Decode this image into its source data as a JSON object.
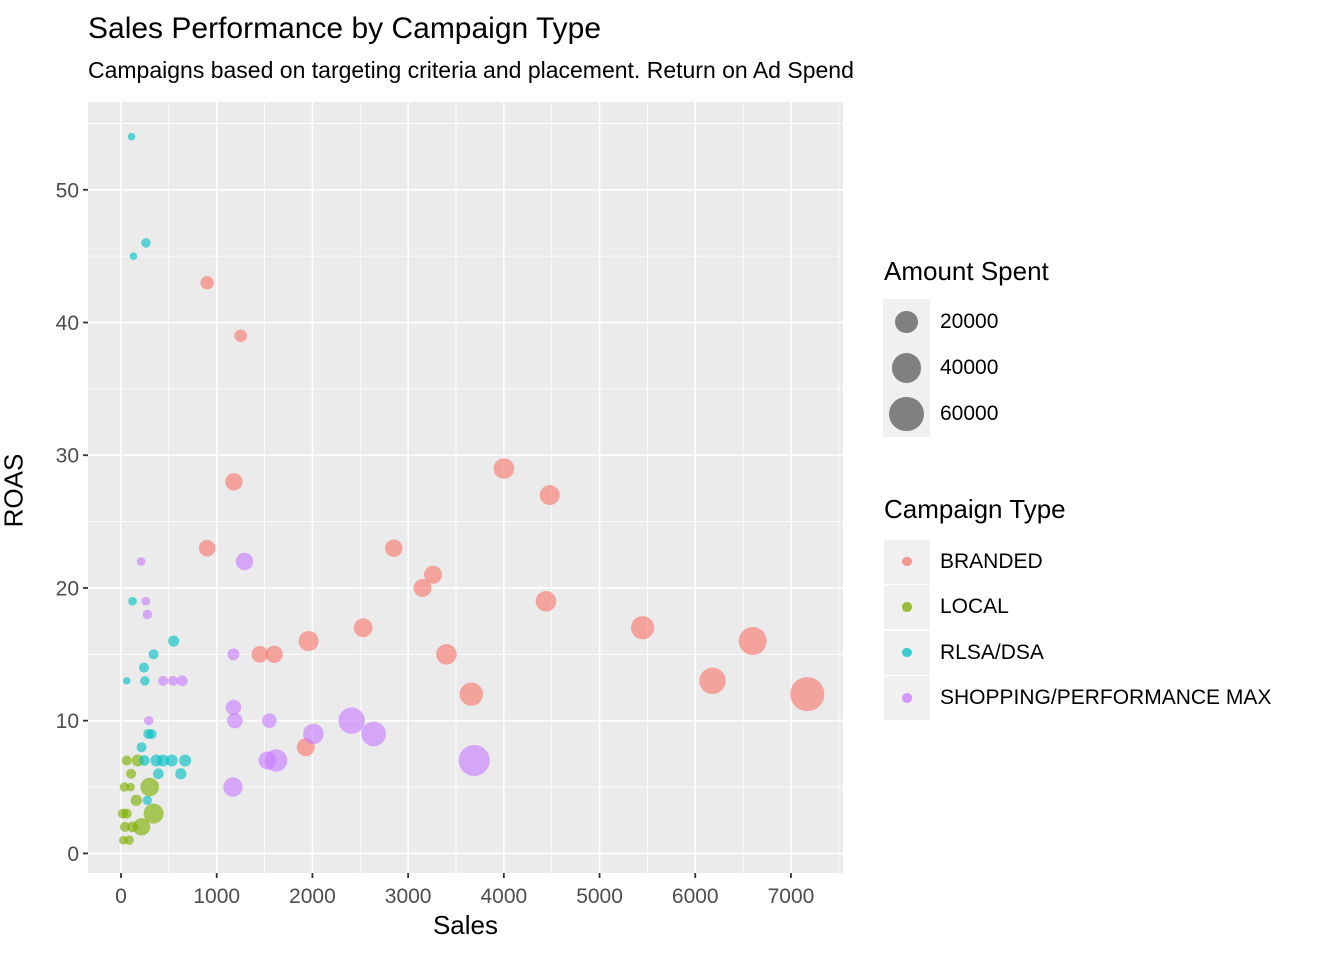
{
  "figure": {
    "title": "Sales Performance by Campaign Type",
    "subtitle": "Campaigns based on targeting criteria and placement. Return on Ad Spend",
    "x_axis_title": "Sales",
    "y_axis_title": "ROAS"
  },
  "legend": {
    "size_legend": {
      "title": "Amount Spent",
      "entries": [
        20000,
        40000,
        60000
      ],
      "circle_color": "#808080",
      "key_bg": "#F0F0F0"
    },
    "color_legend": {
      "title": "Campaign Type",
      "entries": [
        {
          "label": "BRANDED",
          "color": "#F8766D"
        },
        {
          "label": "LOCAL",
          "color": "#7CAE00"
        },
        {
          "label": "RLSA/DSA",
          "color": "#00BFC4"
        },
        {
          "label": "SHOPPING/PERFORMANCE MAX",
          "color": "#C77CFF"
        }
      ]
    }
  },
  "style": {
    "panel_bg": "#EBEBEB",
    "grid_color": "#FFFFFF",
    "tick_color": "#333333",
    "tick_label_color": "#4D4D4D",
    "point_opacity": 0.63
  },
  "chart_data": {
    "type": "scatter",
    "title": "Sales Performance by Campaign Type",
    "subtitle": "Campaigns based on targeting criteria and placement. Return on Ad Spend",
    "xlabel": "Sales",
    "ylabel": "ROAS",
    "xlim": [
      0,
      7500
    ],
    "ylim": [
      0,
      55
    ],
    "x_ticks": [
      0,
      1000,
      2000,
      3000,
      4000,
      5000,
      6000,
      7000
    ],
    "y_ticks": [
      0,
      10,
      20,
      30,
      40,
      50
    ],
    "size_variable": "amount_spent",
    "size_legend_values": [
      20000,
      40000,
      60000
    ],
    "legend_position": "right",
    "grid": true,
    "series": [
      {
        "name": "BRANDED",
        "color": "#F8766D",
        "points": [
          {
            "sales": 900,
            "roas": 43,
            "spent": 4300
          },
          {
            "sales": 1250,
            "roas": 39,
            "spent": 3600
          },
          {
            "sales": 1180,
            "roas": 28,
            "spent": 9500
          },
          {
            "sales": 900,
            "roas": 23,
            "spent": 8300
          },
          {
            "sales": 2850,
            "roas": 23,
            "spent": 9500
          },
          {
            "sales": 4000,
            "roas": 29,
            "spent": 15500
          },
          {
            "sales": 4480,
            "roas": 27,
            "spent": 14300
          },
          {
            "sales": 3260,
            "roas": 21,
            "spent": 10500
          },
          {
            "sales": 3150,
            "roas": 20,
            "spent": 10500
          },
          {
            "sales": 4440,
            "roas": 19,
            "spent": 15500
          },
          {
            "sales": 2530,
            "roas": 17,
            "spent": 12000
          },
          {
            "sales": 5450,
            "roas": 17,
            "spent": 22000
          },
          {
            "sales": 1960,
            "roas": 16,
            "spent": 14300
          },
          {
            "sales": 6600,
            "roas": 16,
            "spent": 36000
          },
          {
            "sales": 1450,
            "roas": 15,
            "spent": 8300
          },
          {
            "sales": 1600,
            "roas": 15,
            "spent": 9500
          },
          {
            "sales": 3400,
            "roas": 15,
            "spent": 15500
          },
          {
            "sales": 6180,
            "roas": 13,
            "spent": 31000
          },
          {
            "sales": 3660,
            "roas": 12,
            "spent": 22000
          },
          {
            "sales": 7170,
            "roas": 12,
            "spent": 60000
          },
          {
            "sales": 1930,
            "roas": 8,
            "spent": 10500
          }
        ]
      },
      {
        "name": "LOCAL",
        "color": "#7CAE00",
        "points": [
          {
            "sales": 60,
            "roas": 7,
            "spent": 2000
          },
          {
            "sales": 175,
            "roas": 7,
            "spent": 3100
          },
          {
            "sales": 105,
            "roas": 6,
            "spent": 2000
          },
          {
            "sales": 35,
            "roas": 5,
            "spent": 1800
          },
          {
            "sales": 100,
            "roas": 5,
            "spent": 1600
          },
          {
            "sales": 300,
            "roas": 5,
            "spent": 11600
          },
          {
            "sales": 160,
            "roas": 4,
            "spent": 2700
          },
          {
            "sales": 20,
            "roas": 3,
            "spent": 2000
          },
          {
            "sales": 60,
            "roas": 3,
            "spent": 2000
          },
          {
            "sales": 340,
            "roas": 3,
            "spent": 14300
          },
          {
            "sales": 40,
            "roas": 2,
            "spent": 2000
          },
          {
            "sales": 120,
            "roas": 2,
            "spent": 2300
          },
          {
            "sales": 215,
            "roas": 2,
            "spent": 9500
          },
          {
            "sales": 25,
            "roas": 1,
            "spent": 1600
          },
          {
            "sales": 85,
            "roas": 1,
            "spent": 1800
          }
        ]
      },
      {
        "name": "RLSA/DSA",
        "color": "#00BFC4",
        "points": [
          {
            "sales": 110,
            "roas": 54,
            "spent": 1500
          },
          {
            "sales": 260,
            "roas": 46,
            "spent": 1800
          },
          {
            "sales": 130,
            "roas": 45,
            "spent": 1500
          },
          {
            "sales": 120,
            "roas": 19,
            "spent": 1600
          },
          {
            "sales": 550,
            "roas": 16,
            "spent": 2500
          },
          {
            "sales": 340,
            "roas": 15,
            "spent": 2000
          },
          {
            "sales": 240,
            "roas": 14,
            "spent": 2000
          },
          {
            "sales": 60,
            "roas": 13,
            "spent": 1500
          },
          {
            "sales": 250,
            "roas": 13,
            "spent": 1800
          },
          {
            "sales": 285,
            "roas": 9,
            "spent": 2000
          },
          {
            "sales": 320,
            "roas": 9,
            "spent": 2000
          },
          {
            "sales": 215,
            "roas": 8,
            "spent": 2000
          },
          {
            "sales": 245,
            "roas": 7,
            "spent": 2300
          },
          {
            "sales": 370,
            "roas": 7,
            "spent": 3100
          },
          {
            "sales": 440,
            "roas": 7,
            "spent": 3100
          },
          {
            "sales": 530,
            "roas": 7,
            "spent": 3100
          },
          {
            "sales": 670,
            "roas": 7,
            "spent": 3100
          },
          {
            "sales": 390,
            "roas": 6,
            "spent": 2300
          },
          {
            "sales": 625,
            "roas": 6,
            "spent": 2700
          },
          {
            "sales": 275,
            "roas": 4,
            "spent": 1800
          }
        ]
      },
      {
        "name": "SHOPPING/PERFORMANCE MAX",
        "color": "#C77CFF",
        "points": [
          {
            "sales": 210,
            "roas": 22,
            "spent": 1600
          },
          {
            "sales": 1290,
            "roas": 22,
            "spent": 9500
          },
          {
            "sales": 260,
            "roas": 19,
            "spent": 1600
          },
          {
            "sales": 275,
            "roas": 18,
            "spent": 1800
          },
          {
            "sales": 1175,
            "roas": 15,
            "spent": 3100
          },
          {
            "sales": 440,
            "roas": 13,
            "spent": 2000
          },
          {
            "sales": 545,
            "roas": 13,
            "spent": 2000
          },
          {
            "sales": 640,
            "roas": 13,
            "spent": 2300
          },
          {
            "sales": 1175,
            "roas": 11,
            "spent": 6600
          },
          {
            "sales": 290,
            "roas": 10,
            "spent": 1800
          },
          {
            "sales": 1190,
            "roas": 10,
            "spent": 6600
          },
          {
            "sales": 1550,
            "roas": 10,
            "spent": 5600
          },
          {
            "sales": 2410,
            "roas": 10,
            "spent": 31000
          },
          {
            "sales": 2640,
            "roas": 9,
            "spent": 25500
          },
          {
            "sales": 2010,
            "roas": 9,
            "spent": 15500
          },
          {
            "sales": 1530,
            "roas": 7,
            "spent": 10500
          },
          {
            "sales": 1620,
            "roas": 7,
            "spent": 20000
          },
          {
            "sales": 1170,
            "roas": 5,
            "spent": 13000
          },
          {
            "sales": 3690,
            "roas": 7,
            "spent": 47000
          }
        ]
      }
    ]
  }
}
